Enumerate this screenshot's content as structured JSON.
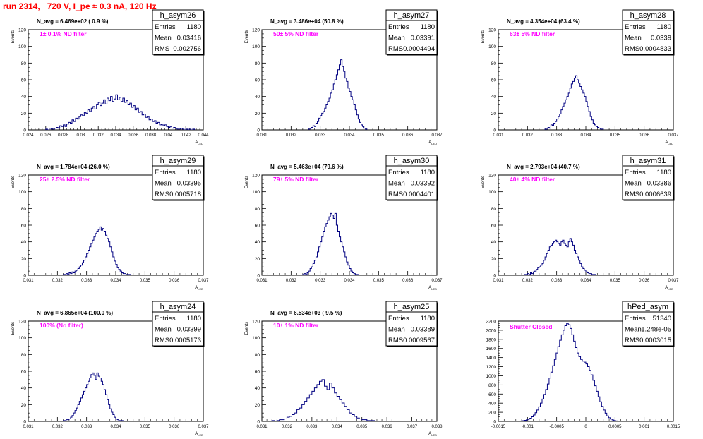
{
  "run_title": "run 2314,   720 V, I_pe ≈ 0.3 nA, 120 Hz",
  "colors": {
    "title": "#ff0000",
    "hist": "#000080",
    "annotation": "#ff00ff",
    "frame": "#000000"
  },
  "chart_data": [
    {
      "type": "bar",
      "name": "h_asym26",
      "ylabel": "Events",
      "xlabel": "A_{LED}",
      "xlim": [
        0.024,
        0.044
      ],
      "ylim": [
        0,
        120
      ],
      "xticks": [
        0.024,
        0.026,
        0.028,
        0.03,
        0.032,
        0.034,
        0.036,
        0.038,
        0.04,
        0.042,
        0.044
      ],
      "xtick_labels": [
        "0.024",
        "0.026",
        "0.028",
        "0.03",
        "0.032",
        "0.034",
        "0.036",
        "0.038",
        "0.04",
        "0.042",
        "0.044"
      ],
      "yticks": [
        0,
        20,
        40,
        60,
        80,
        100,
        120
      ],
      "ytick_labels": [
        "0",
        "20",
        "40",
        "60",
        "80",
        "100",
        "120"
      ],
      "navg": "N_avg = 6.469e+02 ( 0.9 %)",
      "filter": "1± 0.1% ND filter",
      "stats": {
        "Entries": "1180",
        "Mean": "0.03416",
        "RMS": "0.002756"
      },
      "bins": {
        "x0": 0.026,
        "dx": 0.0002,
        "values": [
          1,
          0,
          2,
          1,
          1,
          2,
          3,
          2,
          5,
          4,
          6,
          4,
          7,
          9,
          8,
          12,
          10,
          14,
          13,
          16,
          18,
          17,
          21,
          20,
          24,
          22,
          26,
          28,
          25,
          30,
          33,
          29,
          32,
          36,
          31,
          38,
          35,
          40,
          34,
          37,
          42,
          36,
          39,
          34,
          38,
          33,
          35,
          30,
          32,
          27,
          29,
          24,
          26,
          21,
          22,
          18,
          19,
          15,
          16,
          12,
          13,
          10,
          11,
          8,
          9,
          6,
          7,
          5,
          6,
          4,
          3,
          4,
          2,
          3,
          2,
          1,
          1,
          2,
          1,
          0,
          1,
          0,
          1,
          0,
          1
        ]
      }
    },
    {
      "type": "bar",
      "name": "h_asym27",
      "ylabel": "Events",
      "xlabel": "A_{LED}",
      "xlim": [
        0.031,
        0.037
      ],
      "ylim": [
        0,
        120
      ],
      "xticks": [
        0.031,
        0.032,
        0.033,
        0.034,
        0.035,
        0.036,
        0.037
      ],
      "xtick_labels": [
        "0.031",
        "0.032",
        "0.033",
        "0.034",
        "0.035",
        "0.036",
        "0.037"
      ],
      "yticks": [
        0,
        20,
        40,
        60,
        80,
        100,
        120
      ],
      "ytick_labels": [
        "0",
        "20",
        "40",
        "60",
        "80",
        "100",
        "120"
      ],
      "navg": "N_avg = 3.486e+04 (50.8 %)",
      "filter": "50± 5% ND filter",
      "stats": {
        "Entries": "1180",
        "Mean": "0.03391",
        "RMS": "0.0004494"
      },
      "bins": {
        "x0": 0.0326,
        "dx": 5e-05,
        "values": [
          1,
          2,
          3,
          5,
          4,
          8,
          10,
          14,
          17,
          20,
          22,
          26,
          30,
          34,
          38,
          44,
          48,
          55,
          60,
          66,
          72,
          78,
          84,
          76,
          70,
          62,
          58,
          50,
          46,
          40,
          36,
          30,
          24,
          18,
          13,
          9,
          6,
          4,
          2,
          1
        ]
      }
    },
    {
      "type": "bar",
      "name": "h_asym28",
      "ylabel": "Events",
      "xlabel": "A_{LED}",
      "xlim": [
        0.031,
        0.037
      ],
      "ylim": [
        0,
        120
      ],
      "xticks": [
        0.031,
        0.032,
        0.033,
        0.034,
        0.035,
        0.036,
        0.037
      ],
      "xtick_labels": [
        "0.031",
        "0.032",
        "0.033",
        "0.034",
        "0.035",
        "0.036",
        "0.037"
      ],
      "yticks": [
        0,
        20,
        40,
        60,
        80,
        100,
        120
      ],
      "ytick_labels": [
        "0",
        "20",
        "40",
        "60",
        "80",
        "100",
        "120"
      ],
      "navg": "N_avg = 4.354e+04 (63.4 %)",
      "filter": "63± 5% ND filter",
      "stats": {
        "Entries": "1180",
        "Mean": "0.0339",
        "RMS": "0.0004833"
      },
      "bins": {
        "x0": 0.0326,
        "dx": 5e-05,
        "values": [
          1,
          1,
          3,
          2,
          6,
          5,
          8,
          10,
          13,
          16,
          19,
          24,
          28,
          32,
          36,
          40,
          44,
          50,
          55,
          58,
          62,
          65,
          60,
          56,
          52,
          48,
          44,
          40,
          34,
          28,
          22,
          16,
          12,
          8,
          6,
          4,
          3,
          2,
          1,
          1
        ]
      }
    },
    {
      "type": "bar",
      "name": "h_asym29",
      "ylabel": "Events",
      "xlabel": "A_{LED}",
      "xlim": [
        0.031,
        0.037
      ],
      "ylim": [
        0,
        120
      ],
      "xticks": [
        0.031,
        0.032,
        0.033,
        0.034,
        0.035,
        0.036,
        0.037
      ],
      "xtick_labels": [
        "0.031",
        "0.032",
        "0.033",
        "0.034",
        "0.035",
        "0.036",
        "0.037"
      ],
      "yticks": [
        0,
        20,
        40,
        60,
        80,
        100,
        120
      ],
      "ytick_labels": [
        "0",
        "20",
        "40",
        "60",
        "80",
        "100",
        "120"
      ],
      "navg": "N_avg = 1.784e+04 (26.0 %)",
      "filter": "25± 2.5% ND filter",
      "stats": {
        "Entries": "1180",
        "Mean": "0.03395",
        "RMS": "0.0005718"
      },
      "bins": {
        "x0": 0.0322,
        "dx": 5e-05,
        "values": [
          1,
          1,
          2,
          1,
          3,
          2,
          4,
          3,
          5,
          6,
          8,
          10,
          12,
          15,
          18,
          22,
          26,
          30,
          34,
          38,
          42,
          46,
          50,
          52,
          55,
          58,
          54,
          56,
          52,
          48,
          44,
          40,
          34,
          28,
          22,
          17,
          13,
          9,
          7,
          5,
          3,
          2,
          2,
          1,
          1,
          1
        ]
      }
    },
    {
      "type": "bar",
      "name": "h_asym30",
      "ylabel": "Events",
      "xlabel": "A_{LED}",
      "xlim": [
        0.031,
        0.037
      ],
      "ylim": [
        0,
        120
      ],
      "xticks": [
        0.031,
        0.032,
        0.033,
        0.034,
        0.035,
        0.036,
        0.037
      ],
      "xtick_labels": [
        "0.031",
        "0.032",
        "0.033",
        "0.034",
        "0.035",
        "0.036",
        "0.037"
      ],
      "yticks": [
        0,
        20,
        40,
        60,
        80,
        100,
        120
      ],
      "ytick_labels": [
        "0",
        "20",
        "40",
        "60",
        "80",
        "100",
        "120"
      ],
      "navg": "N_avg = 5.463e+04 (79.6 %)",
      "filter": "79± 5% ND filter",
      "stats": {
        "Entries": "1180",
        "Mean": "0.03392",
        "RMS": "0.0004401"
      },
      "bins": {
        "x0": 0.0324,
        "dx": 5e-05,
        "values": [
          1,
          2,
          1,
          3,
          5,
          8,
          10,
          14,
          18,
          22,
          28,
          34,
          40,
          46,
          52,
          58,
          62,
          66,
          70,
          74,
          72,
          68,
          74,
          60,
          52,
          46,
          40,
          34,
          28,
          22,
          16,
          12,
          8,
          5,
          3,
          2,
          1,
          1
        ]
      }
    },
    {
      "type": "bar",
      "name": "h_asym31",
      "ylabel": "Events",
      "xlabel": "A_{LED}",
      "xlim": [
        0.031,
        0.037
      ],
      "ylim": [
        0,
        120
      ],
      "xticks": [
        0.031,
        0.032,
        0.033,
        0.034,
        0.035,
        0.036,
        0.037
      ],
      "xtick_labels": [
        "0.031",
        "0.032",
        "0.033",
        "0.034",
        "0.035",
        "0.036",
        "0.037"
      ],
      "yticks": [
        0,
        20,
        40,
        60,
        80,
        100,
        120
      ],
      "ytick_labels": [
        "0",
        "20",
        "40",
        "60",
        "80",
        "100",
        "120"
      ],
      "navg": "N_avg = 2.793e+04 (40.7 %)",
      "filter": "40± 4% ND filter",
      "stats": {
        "Entries": "1180",
        "Mean": "0.03386",
        "RMS": "0.0006639"
      },
      "bins": {
        "x0": 0.0319,
        "dx": 5e-05,
        "values": [
          1,
          1,
          2,
          1,
          3,
          2,
          4,
          5,
          7,
          9,
          10,
          12,
          14,
          18,
          22,
          26,
          30,
          34,
          36,
          38,
          40,
          42,
          40,
          38,
          36,
          40,
          42,
          38,
          36,
          34,
          40,
          44,
          40,
          36,
          30,
          26,
          22,
          18,
          14,
          10,
          8,
          6,
          4,
          3,
          2,
          2,
          1,
          1,
          1
        ]
      }
    },
    {
      "type": "bar",
      "name": "h_asym24",
      "ylabel": "Events",
      "xlabel": "A_{LED}",
      "xlim": [
        0.031,
        0.037
      ],
      "ylim": [
        0,
        120
      ],
      "xticks": [
        0.031,
        0.032,
        0.033,
        0.034,
        0.035,
        0.036,
        0.037
      ],
      "xtick_labels": [
        "0.031",
        "0.032",
        "0.033",
        "0.034",
        "0.035",
        "0.036",
        "0.037"
      ],
      "yticks": [
        0,
        20,
        40,
        60,
        80,
        100,
        120
      ],
      "ytick_labels": [
        "0",
        "20",
        "40",
        "60",
        "80",
        "100",
        "120"
      ],
      "navg": "N_avg = 6.865e+04 (100.0 %)",
      "filter": "100% (No filter)",
      "stats": {
        "Entries": "1180",
        "Mean": "0.03399",
        "RMS": "0.0005173"
      },
      "bins": {
        "x0": 0.0322,
        "dx": 5e-05,
        "values": [
          1,
          1,
          2,
          2,
          3,
          5,
          7,
          10,
          13,
          16,
          20,
          24,
          28,
          32,
          36,
          40,
          44,
          48,
          52,
          56,
          58,
          55,
          50,
          58,
          54,
          52,
          48,
          44,
          38,
          32,
          26,
          20,
          15,
          11,
          8,
          5,
          3,
          2,
          1,
          1,
          1
        ]
      }
    },
    {
      "type": "bar",
      "name": "h_asym25",
      "ylabel": "Events",
      "xlabel": "A_{LED}",
      "xlim": [
        0.031,
        0.038
      ],
      "ylim": [
        0,
        120
      ],
      "xticks": [
        0.031,
        0.032,
        0.033,
        0.034,
        0.035,
        0.036,
        0.037,
        0.038
      ],
      "xtick_labels": [
        "0.031",
        "0.032",
        "0.033",
        "0.034",
        "0.035",
        "0.036",
        "0.037",
        "0.038"
      ],
      "yticks": [
        0,
        20,
        40,
        60,
        80,
        100,
        120
      ],
      "ytick_labels": [
        "0",
        "20",
        "40",
        "60",
        "80",
        "100",
        "120"
      ],
      "navg": "N_avg = 6.534e+03 ( 9.5 %)",
      "filter": "10± 1% ND filter",
      "stats": {
        "Entries": "1180",
        "Mean": "0.03389",
        "RMS": "0.0009567"
      },
      "bins": {
        "x0": 0.0314,
        "dx": 0.0001,
        "values": [
          1,
          0,
          1,
          2,
          2,
          3,
          5,
          6,
          8,
          10,
          14,
          16,
          20,
          24,
          28,
          32,
          36,
          40,
          44,
          48,
          50,
          42,
          38,
          46,
          40,
          34,
          30,
          26,
          22,
          18,
          14,
          10,
          8,
          6,
          4,
          3,
          2,
          2,
          1,
          1,
          1
        ]
      }
    },
    {
      "type": "bar",
      "name": "hPed_asym",
      "ylabel": "",
      "xlabel": "",
      "xlim": [
        -0.0015,
        0.0015
      ],
      "ylim": [
        0,
        2200
      ],
      "xticks": [
        -0.0015,
        -0.001,
        -0.0005,
        0,
        0.0005,
        0.001,
        0.0015
      ],
      "xtick_labels": [
        "-0.0015",
        "-0.001",
        "-0.0005",
        "0",
        "0.0005",
        "0.001",
        "0.0015"
      ],
      "yticks": [
        0,
        200,
        400,
        600,
        800,
        1000,
        1200,
        1400,
        1600,
        1800,
        2000,
        2200
      ],
      "ytick_labels": [
        "0",
        "200",
        "400",
        "600",
        "800",
        "1000",
        "1200",
        "1400",
        "1600",
        "1800",
        "2000",
        "2200"
      ],
      "navg": "",
      "filter": "Shutter Closed",
      "stats": {
        "Entries": "51340",
        "Mean": "1.248e-05",
        "RMS": "0.0003015"
      },
      "bins": {
        "x0": -0.0012,
        "dx": 3e-05,
        "values": [
          2,
          4,
          6,
          10,
          16,
          24,
          34,
          50,
          70,
          100,
          140,
          190,
          250,
          320,
          400,
          490,
          590,
          700,
          820,
          950,
          1080,
          1220,
          1360,
          1500,
          1640,
          1780,
          1900,
          2000,
          2100,
          2150,
          2120,
          2040,
          1900,
          1760,
          1620,
          1500,
          1420,
          1360,
          1320,
          1300,
          1260,
          1200,
          1120,
          1020,
          900,
          780,
          660,
          540,
          430,
          330,
          250,
          180,
          120,
          80,
          50,
          30,
          18,
          10,
          6,
          3
        ]
      }
    }
  ]
}
